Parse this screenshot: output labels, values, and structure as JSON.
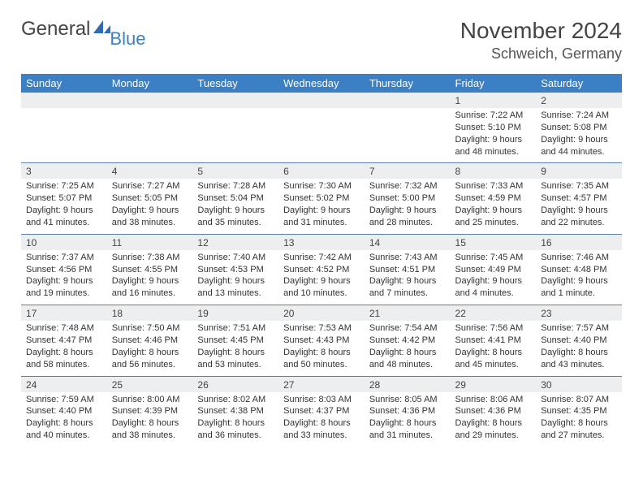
{
  "brand": {
    "word1": "General",
    "word2": "Blue"
  },
  "colors": {
    "headerBg": "#3b7fc4",
    "dayNumBg": "#eceeef",
    "rule": "#5a7fa6"
  },
  "title": {
    "month": "November 2024",
    "location": "Schweich, Germany"
  },
  "dayHeaders": [
    "Sunday",
    "Monday",
    "Tuesday",
    "Wednesday",
    "Thursday",
    "Friday",
    "Saturday"
  ],
  "weeks": [
    [
      null,
      null,
      null,
      null,
      null,
      {
        "n": "1",
        "sr": "Sunrise: 7:22 AM",
        "ss": "Sunset: 5:10 PM",
        "d1": "Daylight: 9 hours",
        "d2": "and 48 minutes."
      },
      {
        "n": "2",
        "sr": "Sunrise: 7:24 AM",
        "ss": "Sunset: 5:08 PM",
        "d1": "Daylight: 9 hours",
        "d2": "and 44 minutes."
      }
    ],
    [
      {
        "n": "3",
        "sr": "Sunrise: 7:25 AM",
        "ss": "Sunset: 5:07 PM",
        "d1": "Daylight: 9 hours",
        "d2": "and 41 minutes."
      },
      {
        "n": "4",
        "sr": "Sunrise: 7:27 AM",
        "ss": "Sunset: 5:05 PM",
        "d1": "Daylight: 9 hours",
        "d2": "and 38 minutes."
      },
      {
        "n": "5",
        "sr": "Sunrise: 7:28 AM",
        "ss": "Sunset: 5:04 PM",
        "d1": "Daylight: 9 hours",
        "d2": "and 35 minutes."
      },
      {
        "n": "6",
        "sr": "Sunrise: 7:30 AM",
        "ss": "Sunset: 5:02 PM",
        "d1": "Daylight: 9 hours",
        "d2": "and 31 minutes."
      },
      {
        "n": "7",
        "sr": "Sunrise: 7:32 AM",
        "ss": "Sunset: 5:00 PM",
        "d1": "Daylight: 9 hours",
        "d2": "and 28 minutes."
      },
      {
        "n": "8",
        "sr": "Sunrise: 7:33 AM",
        "ss": "Sunset: 4:59 PM",
        "d1": "Daylight: 9 hours",
        "d2": "and 25 minutes."
      },
      {
        "n": "9",
        "sr": "Sunrise: 7:35 AM",
        "ss": "Sunset: 4:57 PM",
        "d1": "Daylight: 9 hours",
        "d2": "and 22 minutes."
      }
    ],
    [
      {
        "n": "10",
        "sr": "Sunrise: 7:37 AM",
        "ss": "Sunset: 4:56 PM",
        "d1": "Daylight: 9 hours",
        "d2": "and 19 minutes."
      },
      {
        "n": "11",
        "sr": "Sunrise: 7:38 AM",
        "ss": "Sunset: 4:55 PM",
        "d1": "Daylight: 9 hours",
        "d2": "and 16 minutes."
      },
      {
        "n": "12",
        "sr": "Sunrise: 7:40 AM",
        "ss": "Sunset: 4:53 PM",
        "d1": "Daylight: 9 hours",
        "d2": "and 13 minutes."
      },
      {
        "n": "13",
        "sr": "Sunrise: 7:42 AM",
        "ss": "Sunset: 4:52 PM",
        "d1": "Daylight: 9 hours",
        "d2": "and 10 minutes."
      },
      {
        "n": "14",
        "sr": "Sunrise: 7:43 AM",
        "ss": "Sunset: 4:51 PM",
        "d1": "Daylight: 9 hours",
        "d2": "and 7 minutes."
      },
      {
        "n": "15",
        "sr": "Sunrise: 7:45 AM",
        "ss": "Sunset: 4:49 PM",
        "d1": "Daylight: 9 hours",
        "d2": "and 4 minutes."
      },
      {
        "n": "16",
        "sr": "Sunrise: 7:46 AM",
        "ss": "Sunset: 4:48 PM",
        "d1": "Daylight: 9 hours",
        "d2": "and 1 minute."
      }
    ],
    [
      {
        "n": "17",
        "sr": "Sunrise: 7:48 AM",
        "ss": "Sunset: 4:47 PM",
        "d1": "Daylight: 8 hours",
        "d2": "and 58 minutes."
      },
      {
        "n": "18",
        "sr": "Sunrise: 7:50 AM",
        "ss": "Sunset: 4:46 PM",
        "d1": "Daylight: 8 hours",
        "d2": "and 56 minutes."
      },
      {
        "n": "19",
        "sr": "Sunrise: 7:51 AM",
        "ss": "Sunset: 4:45 PM",
        "d1": "Daylight: 8 hours",
        "d2": "and 53 minutes."
      },
      {
        "n": "20",
        "sr": "Sunrise: 7:53 AM",
        "ss": "Sunset: 4:43 PM",
        "d1": "Daylight: 8 hours",
        "d2": "and 50 minutes."
      },
      {
        "n": "21",
        "sr": "Sunrise: 7:54 AM",
        "ss": "Sunset: 4:42 PM",
        "d1": "Daylight: 8 hours",
        "d2": "and 48 minutes."
      },
      {
        "n": "22",
        "sr": "Sunrise: 7:56 AM",
        "ss": "Sunset: 4:41 PM",
        "d1": "Daylight: 8 hours",
        "d2": "and 45 minutes."
      },
      {
        "n": "23",
        "sr": "Sunrise: 7:57 AM",
        "ss": "Sunset: 4:40 PM",
        "d1": "Daylight: 8 hours",
        "d2": "and 43 minutes."
      }
    ],
    [
      {
        "n": "24",
        "sr": "Sunrise: 7:59 AM",
        "ss": "Sunset: 4:40 PM",
        "d1": "Daylight: 8 hours",
        "d2": "and 40 minutes."
      },
      {
        "n": "25",
        "sr": "Sunrise: 8:00 AM",
        "ss": "Sunset: 4:39 PM",
        "d1": "Daylight: 8 hours",
        "d2": "and 38 minutes."
      },
      {
        "n": "26",
        "sr": "Sunrise: 8:02 AM",
        "ss": "Sunset: 4:38 PM",
        "d1": "Daylight: 8 hours",
        "d2": "and 36 minutes."
      },
      {
        "n": "27",
        "sr": "Sunrise: 8:03 AM",
        "ss": "Sunset: 4:37 PM",
        "d1": "Daylight: 8 hours",
        "d2": "and 33 minutes."
      },
      {
        "n": "28",
        "sr": "Sunrise: 8:05 AM",
        "ss": "Sunset: 4:36 PM",
        "d1": "Daylight: 8 hours",
        "d2": "and 31 minutes."
      },
      {
        "n": "29",
        "sr": "Sunrise: 8:06 AM",
        "ss": "Sunset: 4:36 PM",
        "d1": "Daylight: 8 hours",
        "d2": "and 29 minutes."
      },
      {
        "n": "30",
        "sr": "Sunrise: 8:07 AM",
        "ss": "Sunset: 4:35 PM",
        "d1": "Daylight: 8 hours",
        "d2": "and 27 minutes."
      }
    ]
  ]
}
